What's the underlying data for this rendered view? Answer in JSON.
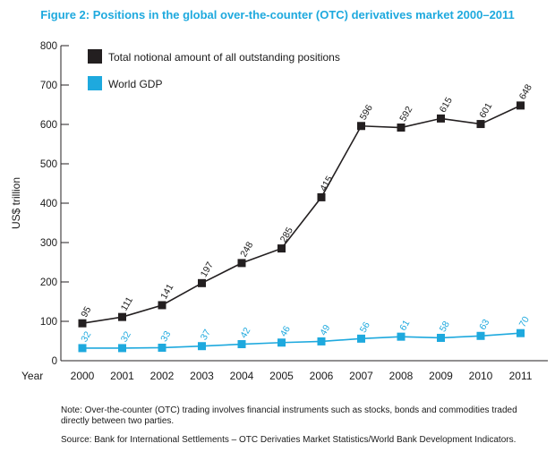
{
  "title": "Figure 2: Positions in the global over-the-counter (OTC) derivatives market 2000–2011",
  "note": "Note: Over-the-counter (OTC) trading involves financial instruments such as stocks, bonds and commodities traded directly between two parties.",
  "source": "Source: Bank for International Settlements – OTC Derivaties Market Statistics/World Bank Development Indicators.",
  "chart_data": {
    "type": "line",
    "title": "Figure 2: Positions in the global over-the-counter (OTC) derivatives market 2000–2011",
    "ylabel": "US$ trillion",
    "xlabel": "Year",
    "ylim": [
      0,
      800
    ],
    "yticks": [
      0,
      100,
      200,
      300,
      400,
      500,
      600,
      700,
      800
    ],
    "categories": [
      "2000",
      "2001",
      "2002",
      "2003",
      "2004",
      "2005",
      "2006",
      "2007",
      "2008",
      "2009",
      "2010",
      "2011"
    ],
    "legend_position": "top-left",
    "grid": false,
    "series": [
      {
        "name": "Total notional amount of all outstanding positions",
        "color": "#231f20",
        "values": [
          95,
          111,
          141,
          197,
          248,
          285,
          415,
          596,
          592,
          615,
          601,
          648
        ]
      },
      {
        "name": "World GDP",
        "color": "#1ea9de",
        "values": [
          32,
          32,
          33,
          37,
          42,
          46,
          49,
          56,
          61,
          58,
          63,
          70
        ]
      }
    ]
  }
}
